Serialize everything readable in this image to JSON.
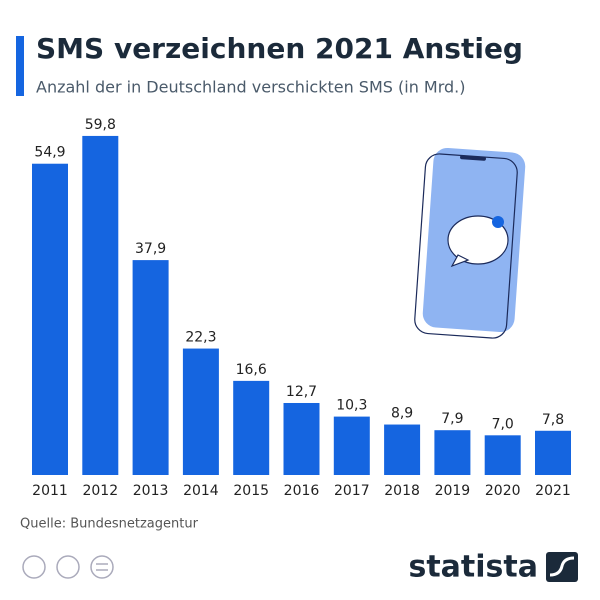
{
  "chart_data": {
    "type": "bar",
    "title": "SMS verzeichnen 2021 Anstieg",
    "subtitle": "Anzahl der in Deutschland verschickten SMS (in Mrd.)",
    "categories": [
      "2011",
      "2012",
      "2013",
      "2014",
      "2015",
      "2016",
      "2017",
      "2018",
      "2019",
      "2020",
      "2021"
    ],
    "values": [
      54.9,
      59.8,
      37.9,
      22.3,
      16.6,
      12.7,
      10.3,
      8.9,
      7.9,
      7.0,
      7.8
    ],
    "value_labels": [
      "54,9",
      "59,8",
      "37,9",
      "22,3",
      "16,6",
      "12,7",
      "10,3",
      "8,9",
      "7,9",
      "7,0",
      "7,8"
    ],
    "color": "#1565e0",
    "source": "Quelle: Bundesnetzagentur",
    "brand": "statista"
  }
}
